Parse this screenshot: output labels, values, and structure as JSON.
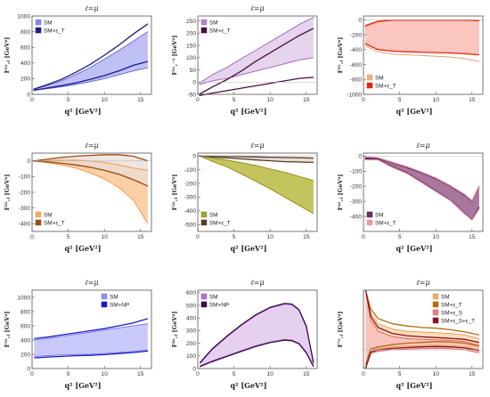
{
  "chart_data": [
    {
      "type": "area",
      "title": "ℓ=μ",
      "xlabel": "q²  [GeV²]",
      "ylabel": "F¹ᴸ,ⱼ  [GeV⁴]",
      "xlim": [
        0,
        16.5
      ],
      "ylim": [
        0,
        1000
      ],
      "xticks": [
        "0",
        "5",
        "10",
        "15"
      ],
      "yticks": [
        "0",
        "200",
        "400",
        "600",
        "800",
        "1000"
      ],
      "legend": "top-left",
      "series": [
        {
          "name": "SM",
          "color": "#6d72e0",
          "fill": "#a9abf2",
          "x": [
            0.2,
            2,
            4,
            6,
            8,
            10,
            12,
            14,
            16
          ],
          "lower": [
            55,
            70,
            95,
            125,
            160,
            200,
            250,
            300,
            340
          ],
          "upper": [
            60,
            110,
            170,
            250,
            340,
            450,
            560,
            680,
            800
          ]
        },
        {
          "name": "SM+ε_T",
          "color": "#1c1a82",
          "fill": "none",
          "x": [
            0.2,
            2,
            4,
            6,
            8,
            10,
            12,
            14,
            16
          ],
          "lower": [
            50,
            80,
            110,
            145,
            190,
            240,
            300,
            370,
            420
          ],
          "upper": [
            65,
            120,
            190,
            280,
            380,
            500,
            630,
            770,
            900
          ]
        }
      ]
    },
    {
      "type": "area",
      "title": "ℓ=μ",
      "xlabel": "q²  [GeV²]",
      "ylabel": "F¹ᴸ,⁻¹  [GeV⁴]",
      "xlim": [
        0,
        16.5
      ],
      "ylim": [
        -50,
        270
      ],
      "xticks": [
        "0",
        "5",
        "10",
        "15"
      ],
      "yticks": [
        "-50",
        "0",
        "50",
        "100",
        "150",
        "200",
        "250"
      ],
      "legend": "top-left",
      "series": [
        {
          "name": "SM",
          "color": "#a46db8",
          "fill": "#ddc4e8",
          "x": [
            0.2,
            2,
            4,
            6,
            8,
            10,
            12,
            14,
            16
          ],
          "lower": [
            -10,
            5,
            15,
            30,
            45,
            60,
            75,
            90,
            100
          ],
          "upper": [
            -5,
            30,
            60,
            95,
            130,
            165,
            200,
            235,
            265
          ]
        },
        {
          "name": "SM+ε_T",
          "color": "#4a0f3e",
          "fill": "none",
          "x": [
            0.2,
            2,
            4,
            6,
            8,
            10,
            12,
            14,
            16
          ],
          "lower": [
            -55,
            -45,
            -35,
            -25,
            -15,
            -5,
            5,
            15,
            20
          ],
          "upper": [
            -50,
            -20,
            10,
            45,
            85,
            120,
            155,
            190,
            220
          ]
        }
      ]
    },
    {
      "type": "area",
      "title": "",
      "xlabel": "q²  [GeV²]",
      "ylabel": "F¹ᴸ,ⱼ  [GeV⁴]",
      "xlim": [
        0,
        16.5
      ],
      "ylim": [
        -1000,
        50
      ],
      "xticks": [
        "0",
        "5",
        "10",
        "15"
      ],
      "yticks": [
        "-1000",
        "-800",
        "-600",
        "-400",
        "-200",
        "0"
      ],
      "legend": "bottom-left",
      "series": [
        {
          "name": "SM",
          "color": "#e8a070",
          "fill": "none",
          "x": [
            0.2,
            2,
            4,
            6,
            8,
            10,
            12,
            14,
            16
          ],
          "lower": [
            -350,
            -430,
            -460,
            -470,
            -480,
            -490,
            -500,
            -520,
            -560
          ],
          "upper": [
            -100,
            -30,
            -10,
            -10,
            -10,
            -10,
            -10,
            -10,
            -20
          ]
        },
        {
          "name": "SM+ε_T",
          "color": "#e52410",
          "fill": "#f9b3aa",
          "x": [
            0.2,
            2,
            4,
            6,
            8,
            10,
            12,
            14,
            16
          ],
          "lower": [
            -320,
            -400,
            -420,
            -430,
            -435,
            -440,
            -445,
            -455,
            -470
          ],
          "upper": [
            -80,
            -20,
            -5,
            -5,
            -5,
            -5,
            -5,
            -5,
            -10
          ]
        }
      ]
    },
    {
      "type": "area",
      "title": "ℓ=μ",
      "xlabel": "q²  [GeV²]",
      "ylabel": "F²ᴸ,ⱼ  [GeV⁴]",
      "xlim": [
        0,
        16.5
      ],
      "ylim": [
        -450,
        50
      ],
      "xticks": [
        "0",
        "5",
        "10",
        "15"
      ],
      "yticks": [
        "-400",
        "-300",
        "-200",
        "-100",
        "0"
      ],
      "legend": "bottom-left",
      "series": [
        {
          "name": "SM",
          "color": "#f29a4a",
          "fill": "#fac08a",
          "x": [
            0.2,
            2,
            4,
            6,
            8,
            10,
            12,
            14,
            16
          ],
          "lower": [
            0,
            -10,
            -25,
            -45,
            -75,
            -115,
            -170,
            -250,
            -400
          ],
          "upper": [
            0,
            2,
            5,
            5,
            0,
            -10,
            -25,
            -45,
            -60
          ]
        },
        {
          "name": "SM+ε_T",
          "color": "#9a4a10",
          "fill": "#e8ddd5",
          "x": [
            0.2,
            2,
            4,
            6,
            8,
            10,
            12,
            14,
            16
          ],
          "lower": [
            0,
            -5,
            -15,
            -25,
            -40,
            -60,
            -85,
            -120,
            -160
          ],
          "upper": [
            0,
            10,
            22,
            30,
            35,
            40,
            40,
            30,
            0
          ]
        }
      ]
    },
    {
      "type": "area",
      "title": "ℓ=μ",
      "xlabel": "q²  [GeV²]",
      "ylabel": "F³ᴸ,ⱼ  [GeV⁴]",
      "xlim": [
        0,
        16.5
      ],
      "ylim": [
        -550,
        20
      ],
      "xticks": [
        "0",
        "5",
        "10",
        "15"
      ],
      "yticks": [
        "-500",
        "-400",
        "-300",
        "-200",
        "-100",
        "0"
      ],
      "legend": "bottom-left",
      "series": [
        {
          "name": "SM",
          "color": "#8f9014",
          "fill": "#b0b02a",
          "x": [
            0.2,
            2,
            4,
            6,
            8,
            10,
            12,
            14,
            16
          ],
          "lower": [
            0,
            -40,
            -80,
            -130,
            -185,
            -240,
            -300,
            -360,
            -420
          ],
          "upper": [
            0,
            -15,
            -30,
            -50,
            -70,
            -95,
            -120,
            -150,
            -180
          ]
        },
        {
          "name": "SM+ε_T",
          "color": "#5a3a2a",
          "fill": "#ddd2c8",
          "x": [
            0.2,
            2,
            4,
            6,
            8,
            10,
            12,
            14,
            16
          ],
          "lower": [
            0,
            -8,
            -15,
            -22,
            -30,
            -36,
            -42,
            -45,
            -48
          ],
          "upper": [
            0,
            -2,
            -4,
            -6,
            -8,
            -10,
            -12,
            -14,
            -16
          ]
        }
      ]
    },
    {
      "type": "area",
      "title": "ℓ=μ",
      "xlabel": "q²  [GeV²]",
      "ylabel": "F⁴ᴸ,ⱼ  [GeV⁴]",
      "xlim": [
        0,
        16.5
      ],
      "ylim": [
        -500,
        20
      ],
      "xticks": [
        "0",
        "5",
        "10",
        "15"
      ],
      "yticks": [
        "-400",
        "-300",
        "-200",
        "-100",
        "0"
      ],
      "legend": "bottom-left",
      "series": [
        {
          "name": "SM",
          "color": "#4d0d4a",
          "fill": "#8c4a7e",
          "x": [
            0.2,
            2,
            4,
            6,
            8,
            10,
            12,
            14,
            15,
            16
          ],
          "lower": [
            -20,
            -20,
            -70,
            -110,
            -170,
            -230,
            -290,
            -380,
            -420,
            -340
          ],
          "upper": [
            -10,
            -15,
            -45,
            -75,
            -110,
            -150,
            -200,
            -260,
            -300,
            -200
          ]
        },
        {
          "name": "SM+ε_T",
          "color": "#e89aa8",
          "fill": "none",
          "x": [
            0.2,
            2,
            4,
            6,
            8,
            10,
            12,
            14,
            15,
            16
          ],
          "lower": [
            -25,
            -25,
            -75,
            -115,
            -175,
            -235,
            -295,
            -385,
            -425,
            -350
          ],
          "upper": [
            -5,
            -10,
            -40,
            -70,
            -105,
            -145,
            -195,
            -255,
            -295,
            -195
          ]
        }
      ]
    },
    {
      "type": "area",
      "title": "ℓ=μ",
      "xlabel": "q²  [GeV²]",
      "ylabel": "F⁵ᴸ,ⱼ  [GeV⁴]",
      "xlim": [
        0,
        16.5
      ],
      "ylim": [
        0,
        1100
      ],
      "xticks": [
        "0",
        "5",
        "10",
        "15"
      ],
      "yticks": [
        "0",
        "200",
        "400",
        "600",
        "800",
        "1000"
      ],
      "legend": "top-right",
      "series": [
        {
          "name": "SM",
          "color": "#7b7ef0",
          "fill": "#b5b7f5",
          "x": [
            0.3,
            2,
            4,
            6,
            8,
            10,
            12,
            14,
            16
          ],
          "lower": [
            170,
            180,
            190,
            195,
            200,
            210,
            225,
            240,
            260
          ],
          "upper": [
            400,
            420,
            450,
            480,
            510,
            540,
            570,
            600,
            630
          ]
        },
        {
          "name": "SM+NP",
          "color": "#1a1ac8",
          "fill": "none",
          "x": [
            0.3,
            2,
            4,
            6,
            8,
            10,
            12,
            14,
            16
          ],
          "lower": [
            150,
            160,
            170,
            180,
            185,
            195,
            210,
            225,
            245
          ],
          "upper": [
            420,
            440,
            470,
            500,
            530,
            560,
            600,
            640,
            700
          ]
        }
      ]
    },
    {
      "type": "area",
      "title": "ℓ=μ",
      "xlabel": "q²  [GeV²]",
      "ylabel": "F⁶ᴸ,ⱼ  [GeV⁴]",
      "xlim": [
        0,
        16.5
      ],
      "ylim": [
        0,
        620
      ],
      "xticks": [
        "0",
        "5",
        "10",
        "15"
      ],
      "yticks": [
        "0",
        "100",
        "200",
        "300",
        "400",
        "500",
        "600"
      ],
      "legend": "top-left",
      "series": [
        {
          "name": "SM",
          "color": "#a05ab8",
          "fill": "#dcc0ea",
          "x": [
            0.3,
            2,
            4,
            6,
            8,
            10,
            12,
            13,
            14,
            15,
            16
          ],
          "lower": [
            20,
            60,
            100,
            140,
            180,
            210,
            230,
            225,
            200,
            130,
            20
          ],
          "upper": [
            40,
            150,
            250,
            340,
            420,
            480,
            510,
            505,
            460,
            330,
            40
          ]
        },
        {
          "name": "SM+NP",
          "color": "#3a0a4a",
          "fill": "none",
          "x": [
            0.3,
            2,
            4,
            6,
            8,
            10,
            12,
            13,
            14,
            15,
            16
          ],
          "lower": [
            15,
            55,
            95,
            135,
            175,
            205,
            225,
            220,
            195,
            125,
            15
          ],
          "upper": [
            45,
            155,
            255,
            345,
            425,
            485,
            515,
            510,
            465,
            335,
            45
          ]
        }
      ]
    },
    {
      "type": "area",
      "title": "ℓ=μ",
      "xlabel": "q²  [GeV²]",
      "ylabel": "F⁷ᴸ,ⱼ  [GeV⁴]",
      "xlim": [
        0,
        16.5
      ],
      "ylim": [
        -250,
        800
      ],
      "xticks": [
        "0",
        "5",
        "10",
        "15"
      ],
      "yticks": [],
      "legend": "top-right",
      "series": [
        {
          "name": "SM",
          "color": "#e8a050",
          "fill": "#f8d2a8",
          "x": [
            0.3,
            1,
            2,
            4,
            6,
            8,
            10,
            12,
            14,
            16
          ],
          "lower": [
            -250,
            0,
            20,
            40,
            50,
            55,
            60,
            55,
            40,
            0
          ],
          "upper": [
            800,
            500,
            350,
            280,
            250,
            240,
            230,
            220,
            200,
            150
          ]
        },
        {
          "name": "SM+ε_T",
          "color": "#b86a10",
          "fill": "none",
          "x": [
            0.3,
            1,
            2,
            4,
            6,
            8,
            10,
            12,
            14,
            16
          ],
          "lower": [
            -200,
            10,
            40,
            70,
            90,
            100,
            110,
            105,
            90,
            50
          ],
          "upper": [
            800,
            550,
            420,
            350,
            320,
            300,
            290,
            270,
            240,
            200
          ]
        },
        {
          "name": "SM+ε_S",
          "color": "#e26868",
          "fill": "#f5b9b9",
          "x": [
            0.3,
            1,
            2,
            4,
            6,
            8,
            10,
            12,
            14,
            16
          ],
          "lower": [
            -250,
            -50,
            -20,
            0,
            10,
            15,
            20,
            15,
            0,
            -40
          ],
          "upper": [
            800,
            400,
            250,
            180,
            150,
            140,
            135,
            130,
            110,
            60
          ]
        },
        {
          "name": "SM+ε_S+ε_T",
          "color": "#8a1020",
          "fill": "none",
          "x": [
            0.3,
            1,
            2,
            4,
            6,
            8,
            10,
            12,
            14,
            16
          ],
          "lower": [
            -250,
            -30,
            0,
            20,
            30,
            40,
            45,
            40,
            25,
            -10
          ],
          "upper": [
            800,
            450,
            300,
            220,
            190,
            175,
            165,
            155,
            140,
            100
          ]
        }
      ]
    }
  ]
}
